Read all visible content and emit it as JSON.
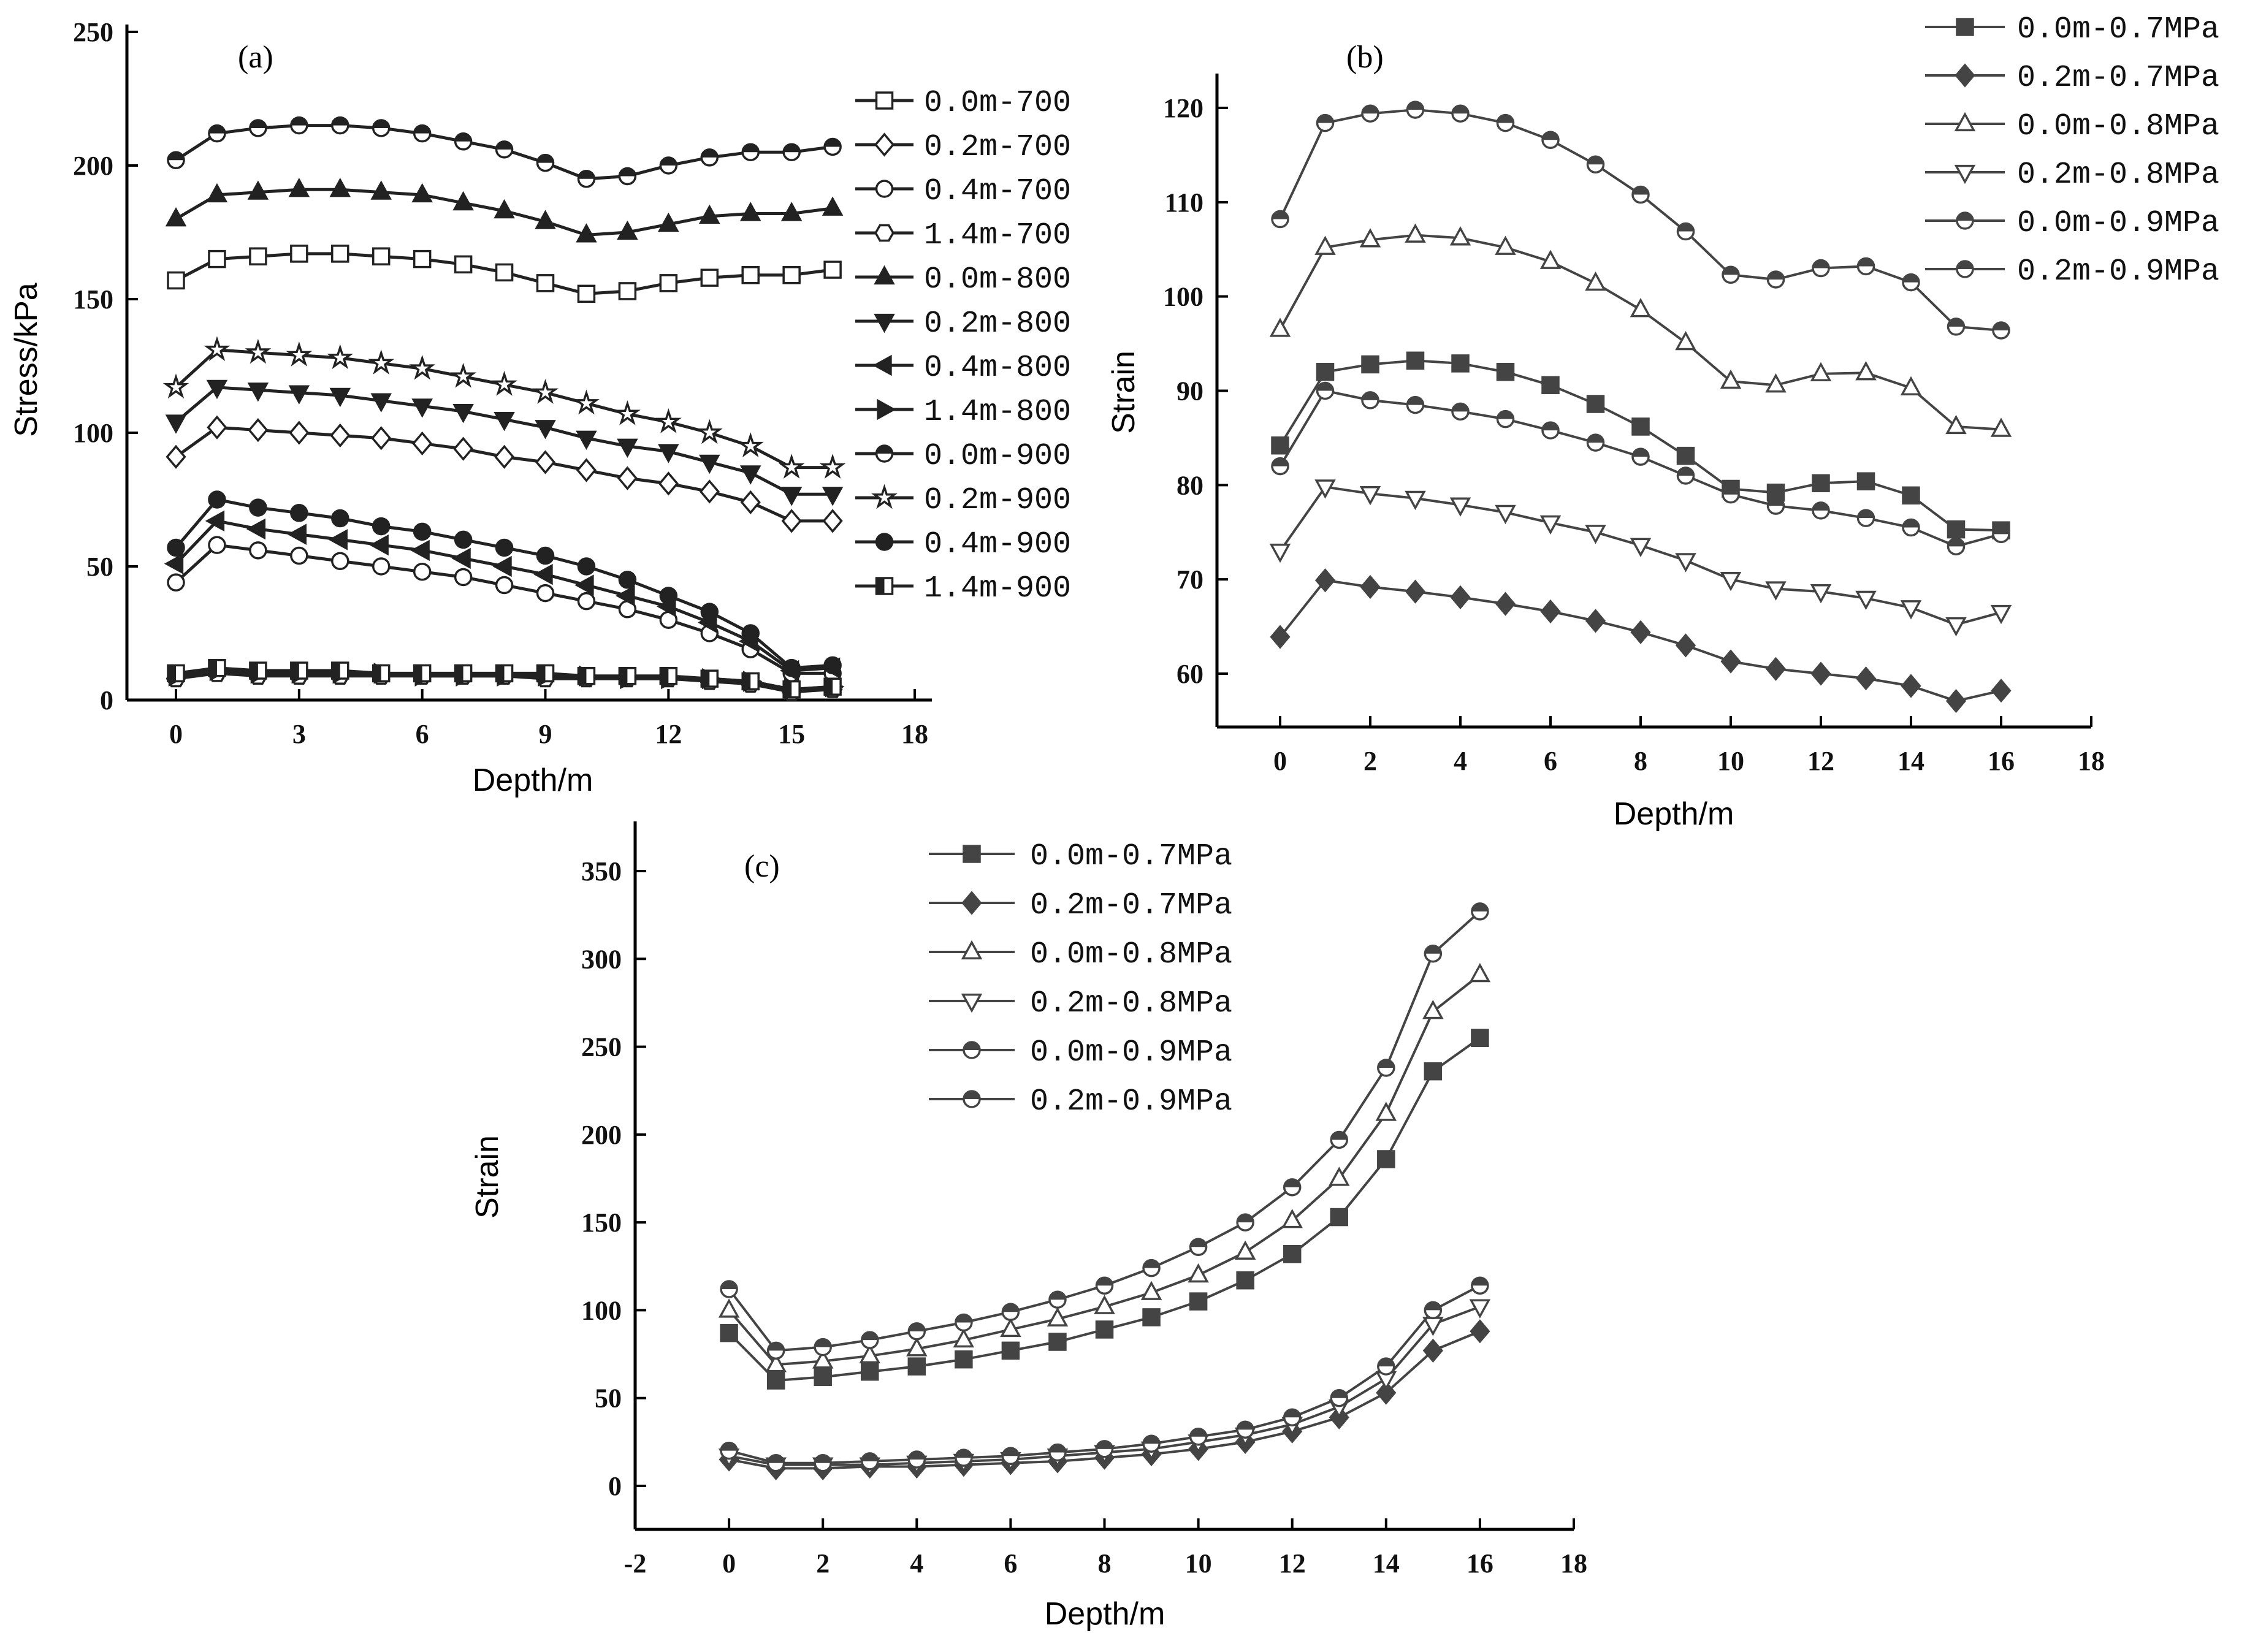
{
  "chart_data": [
    {
      "type": "line",
      "panel_label": "(a)",
      "xlabel": "Depth/m",
      "ylabel": "Stress/kPa",
      "xlim": [
        0,
        18
      ],
      "ylim": [
        0,
        250
      ],
      "xticks": [
        "0",
        "3",
        "6",
        "9",
        "12",
        "15",
        "18"
      ],
      "yticks": [
        "0",
        "50",
        "100",
        "150",
        "200",
        "250"
      ],
      "legend_position": "right",
      "x": [
        0,
        1,
        2,
        3,
        4,
        5,
        6,
        7,
        8,
        9,
        10,
        11,
        12,
        13,
        14,
        15,
        16
      ],
      "series": [
        {
          "name": "0.0m-700",
          "marker": "open-square",
          "color": "#222222",
          "values": [
            157,
            165,
            166,
            167,
            167,
            166,
            165,
            163,
            160,
            156,
            152,
            153,
            156,
            158,
            159,
            159,
            161
          ]
        },
        {
          "name": "0.2m-700",
          "marker": "open-diamond",
          "color": "#222222",
          "values": [
            91,
            102,
            101,
            100,
            99,
            98,
            96,
            94,
            91,
            89,
            86,
            83,
            81,
            78,
            74,
            67,
            67
          ]
        },
        {
          "name": "0.4m-700",
          "marker": "open-circle",
          "color": "#222222",
          "values": [
            44,
            58,
            56,
            54,
            52,
            50,
            48,
            46,
            43,
            40,
            37,
            34,
            30,
            25,
            19,
            10,
            10
          ]
        },
        {
          "name": "1.4m-700",
          "marker": "open-hexagon",
          "color": "#222222",
          "values": [
            8,
            10,
            9,
            9,
            9,
            9,
            9,
            9,
            9,
            8,
            8,
            8,
            8,
            7,
            6,
            3,
            4
          ]
        },
        {
          "name": "0.0m-800",
          "marker": "filled-triangle-up",
          "color": "#222222",
          "values": [
            180,
            189,
            190,
            191,
            191,
            190,
            189,
            186,
            183,
            179,
            174,
            175,
            178,
            181,
            182,
            182,
            184
          ]
        },
        {
          "name": "0.2m-800",
          "marker": "filled-triangle-down",
          "color": "#222222",
          "values": [
            104,
            117,
            116,
            115,
            114,
            112,
            110,
            108,
            105,
            102,
            98,
            95,
            93,
            89,
            85,
            77,
            77
          ]
        },
        {
          "name": "0.4m-800",
          "marker": "filled-triangle-left",
          "color": "#222222",
          "values": [
            51,
            67,
            64,
            62,
            60,
            58,
            56,
            53,
            50,
            47,
            43,
            39,
            35,
            29,
            22,
            11,
            12
          ]
        },
        {
          "name": "1.4m-800",
          "marker": "filled-triangle-right",
          "color": "#222222",
          "values": [
            9,
            11,
            10,
            10,
            10,
            10,
            9,
            9,
            9,
            9,
            9,
            8,
            8,
            8,
            7,
            4,
            5
          ]
        },
        {
          "name": "0.0m-900",
          "marker": "half-circle",
          "color": "#222222",
          "values": [
            202,
            212,
            214,
            215,
            215,
            214,
            212,
            209,
            206,
            201,
            195,
            196,
            200,
            203,
            205,
            205,
            207
          ]
        },
        {
          "name": "0.2m-900",
          "marker": "star",
          "color": "#222222",
          "values": [
            117,
            131,
            130,
            129,
            128,
            126,
            124,
            121,
            118,
            115,
            111,
            107,
            104,
            100,
            95,
            87,
            87
          ]
        },
        {
          "name": "0.4m-900",
          "marker": "filled-circle",
          "color": "#222222",
          "values": [
            57,
            75,
            72,
            70,
            68,
            65,
            63,
            60,
            57,
            54,
            50,
            45,
            39,
            33,
            25,
            12,
            13
          ]
        },
        {
          "name": "1.4m-900",
          "marker": "half-square",
          "color": "#222222",
          "values": [
            10,
            12,
            11,
            11,
            11,
            10,
            10,
            10,
            10,
            10,
            9,
            9,
            9,
            8,
            7,
            4,
            5
          ]
        }
      ]
    },
    {
      "type": "line",
      "panel_label": "(b)",
      "xlabel": "Depth/m",
      "ylabel": "Strain",
      "xlim": [
        0,
        18
      ],
      "ylim": [
        55,
        123
      ],
      "xticks": [
        "0",
        "2",
        "4",
        "6",
        "8",
        "10",
        "12",
        "14",
        "16",
        "18"
      ],
      "yticks": [
        "60",
        "70",
        "80",
        "90",
        "100",
        "110",
        "120"
      ],
      "legend_position": "top-right",
      "x": [
        0,
        1,
        2,
        3,
        4,
        5,
        6,
        7,
        8,
        9,
        10,
        11,
        12,
        13,
        14,
        15,
        16
      ],
      "series": [
        {
          "name": "0.0m-0.7MPa",
          "marker": "filled-square",
          "color": "#444444",
          "values": [
            84.2,
            92,
            92.8,
            93.2,
            92.9,
            92,
            90.6,
            88.6,
            86.2,
            83.1,
            79.6,
            79.2,
            80.2,
            80.4,
            78.9,
            75.3,
            75.2
          ]
        },
        {
          "name": "0.2m-0.7MPa",
          "marker": "filled-diamond",
          "color": "#444444",
          "values": [
            63.9,
            69.9,
            69.2,
            68.7,
            68.1,
            67.4,
            66.6,
            65.6,
            64.4,
            63,
            61.3,
            60.5,
            60,
            59.5,
            58.7,
            57.1,
            58.2
          ]
        },
        {
          "name": "0.0m-0.8MPa",
          "marker": "open-triangle-up",
          "color": "#444444",
          "values": [
            96.5,
            105.2,
            106,
            106.5,
            106.2,
            105.2,
            103.7,
            101.4,
            98.6,
            95.1,
            91,
            90.6,
            91.8,
            91.9,
            90.3,
            86.2,
            85.9
          ]
        },
        {
          "name": "0.2m-0.8MPa",
          "marker": "open-triangle-down",
          "color": "#444444",
          "values": [
            73,
            79.8,
            79.1,
            78.6,
            77.9,
            77.1,
            76,
            75,
            73.6,
            72,
            70,
            69,
            68.7,
            68,
            67,
            65.2,
            66.5
          ]
        },
        {
          "name": "0.0m-0.9MPa",
          "marker": "half-circle",
          "color": "#444444",
          "values": [
            108.2,
            118.4,
            119.4,
            119.8,
            119.4,
            118.4,
            116.6,
            114,
            110.8,
            106.9,
            102.3,
            101.8,
            103,
            103.2,
            101.5,
            96.8,
            96.4
          ]
        },
        {
          "name": "0.2m-0.9MPa",
          "marker": "half-circle",
          "color": "#444444",
          "values": [
            82,
            90,
            89,
            88.5,
            87.8,
            87,
            85.8,
            84.5,
            83,
            81,
            79,
            77.8,
            77.3,
            76.5,
            75.5,
            73.5,
            74.8
          ]
        }
      ]
    },
    {
      "type": "line",
      "panel_label": "(c)",
      "xlabel": "Depth/m",
      "ylabel": "Strain",
      "xlim": [
        -2,
        18
      ],
      "ylim": [
        -25,
        370
      ],
      "xticks": [
        "-2",
        "0",
        "2",
        "4",
        "6",
        "8",
        "10",
        "12",
        "14",
        "16",
        "18"
      ],
      "yticks": [
        "0",
        "50",
        "100",
        "150",
        "200",
        "250",
        "300",
        "350"
      ],
      "legend_position": "top-left",
      "x": [
        0,
        1,
        2,
        3,
        4,
        5,
        6,
        7,
        8,
        9,
        10,
        11,
        12,
        13,
        14,
        15,
        16
      ],
      "series": [
        {
          "name": "0.0m-0.7MPa",
          "marker": "filled-square",
          "color": "#444444",
          "values": [
            87,
            60,
            62,
            65,
            68,
            72,
            77,
            82,
            89,
            96,
            105,
            117,
            132,
            153,
            186,
            236,
            255
          ]
        },
        {
          "name": "0.2m-0.7MPa",
          "marker": "filled-diamond",
          "color": "#444444",
          "values": [
            15,
            10,
            10,
            11,
            11,
            12,
            13,
            14,
            16,
            18,
            21,
            25,
            31,
            39,
            53,
            77,
            88
          ]
        },
        {
          "name": "0.0m-0.8MPa",
          "marker": "open-triangle-up",
          "color": "#444444",
          "values": [
            100,
            69,
            71,
            74,
            78,
            83,
            89,
            95,
            102,
            110,
            120,
            133,
            151,
            175,
            212,
            270,
            291
          ]
        },
        {
          "name": "0.2m-0.8MPa",
          "marker": "open-triangle-down",
          "color": "#444444",
          "values": [
            17,
            12,
            12,
            12,
            13,
            14,
            15,
            17,
            19,
            21,
            25,
            29,
            35,
            45,
            61,
            92,
            102
          ]
        },
        {
          "name": "0.0m-0.9MPa",
          "marker": "half-circle",
          "color": "#444444",
          "values": [
            112,
            77,
            79,
            83,
            88,
            93,
            99,
            106,
            114,
            124,
            136,
            150,
            170,
            197,
            238,
            303,
            327
          ]
        },
        {
          "name": "0.2m-0.9MPa",
          "marker": "half-circle",
          "color": "#444444",
          "values": [
            20,
            13,
            13,
            14,
            15,
            16,
            17,
            19,
            21,
            24,
            28,
            32,
            39,
            50,
            68,
            100,
            114
          ]
        }
      ]
    }
  ]
}
